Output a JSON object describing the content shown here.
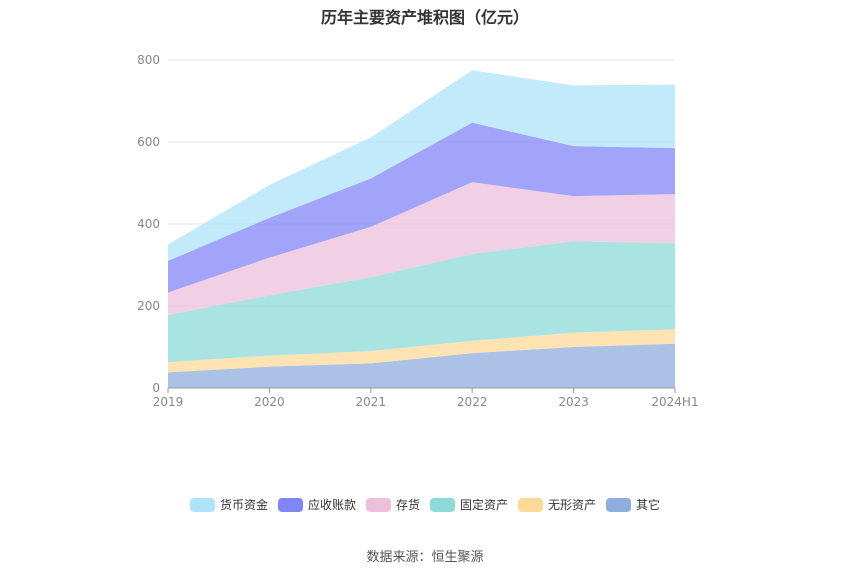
{
  "chart_data": {
    "type": "area",
    "stacked": true,
    "title": "历年主要资产堆积图（亿元）",
    "x": [
      "2019",
      "2020",
      "2021",
      "2022",
      "2023",
      "2024H1"
    ],
    "yticks": [
      0,
      200,
      400,
      600,
      800
    ],
    "ylim": [
      0,
      800
    ],
    "grid": true,
    "legend_position": "bottom",
    "series": [
      {
        "name": "其它",
        "color": "#8fadde",
        "values": [
          38,
          52,
          60,
          85,
          100,
          108
        ]
      },
      {
        "name": "无形资产",
        "color": "#ffd99a",
        "values": [
          25,
          27,
          30,
          30,
          35,
          35
        ]
      },
      {
        "name": "固定资产",
        "color": "#8cdbd8",
        "values": [
          115,
          147,
          180,
          212,
          223,
          210
        ]
      },
      {
        "name": "存货",
        "color": "#ecc0dd",
        "values": [
          55,
          92,
          123,
          175,
          110,
          120
        ]
      },
      {
        "name": "应收账款",
        "color": "#8285f5",
        "values": [
          77,
          97,
          118,
          145,
          122,
          112
        ]
      },
      {
        "name": "货币资金",
        "color": "#aee3fa",
        "values": [
          40,
          80,
          100,
          128,
          148,
          155
        ]
      }
    ]
  },
  "legend_order": [
    "货币资金",
    "应收账款",
    "存货",
    "固定资产",
    "无形资产",
    "其它"
  ],
  "source_text": "数据来源：恒生聚源"
}
